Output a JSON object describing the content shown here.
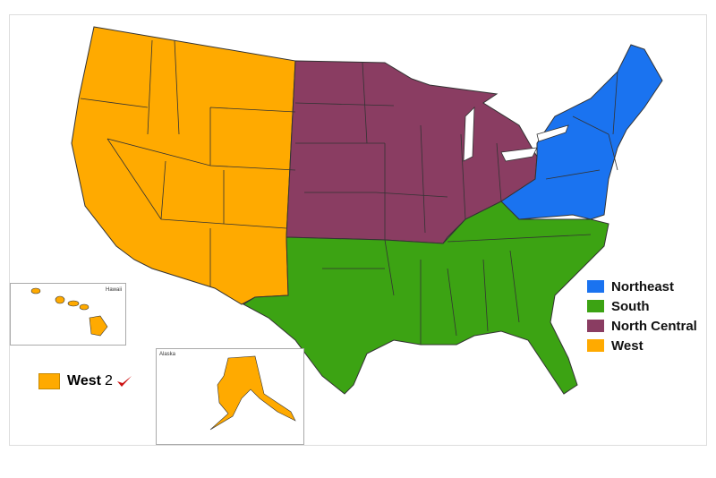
{
  "legend": [
    {
      "label": "Northeast",
      "color": "#1a73f0"
    },
    {
      "label": "South",
      "color": "#3ca313"
    },
    {
      "label": "North Central",
      "color": "#8a3d62"
    },
    {
      "label": "West",
      "color": "#ffaa00"
    }
  ],
  "insets": {
    "hawaii": "Hawaii",
    "alaska": "Alaska"
  },
  "annotation": {
    "label": "West",
    "number": "2",
    "mark": "checkmark-icon",
    "mark_color": "#cc1111"
  }
}
